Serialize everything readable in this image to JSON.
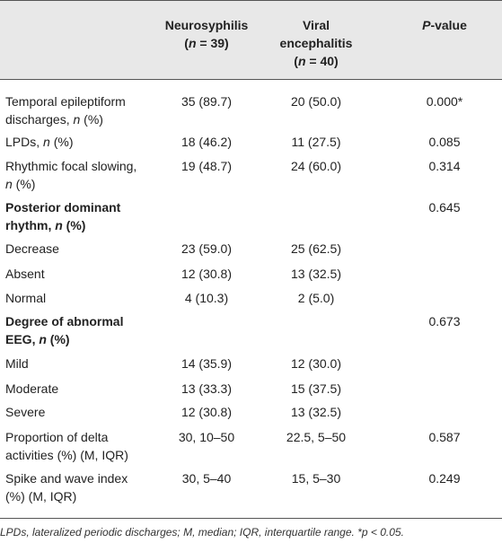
{
  "header": {
    "col1": [
      "Neurosyphilis",
      "(",
      "n",
      " = 39)"
    ],
    "col2": [
      "Viral",
      "encephalitis",
      "(",
      "n",
      " = 40)"
    ],
    "col3": [
      "P",
      "-value"
    ]
  },
  "rows": [
    {
      "label": [
        "Temporal epileptiform",
        "discharges, ",
        "n",
        " (%)"
      ],
      "v1": "35 (89.7)",
      "v2": "20 (50.0)",
      "p": "0.000*"
    },
    {
      "label": [
        "LPDs, ",
        "n",
        " (%)"
      ],
      "v1": "18 (46.2)",
      "v2": "11 (27.5)",
      "p": "0.085"
    },
    {
      "label": [
        "Rhythmic focal slowing,",
        "n",
        " (%)"
      ],
      "v1": "19 (48.7)",
      "v2": "24 (60.0)",
      "p": "0.314"
    },
    {
      "label": [
        "Posterior dominant",
        "rhythm, ",
        "n",
        " (%)"
      ],
      "v1": "",
      "v2": "",
      "p": "0.645"
    },
    {
      "label": [
        "Decrease"
      ],
      "v1": "23 (59.0)",
      "v2": "25 (62.5)",
      "p": ""
    },
    {
      "label": [
        "Absent"
      ],
      "v1": "12 (30.8)",
      "v2": "13 (32.5)",
      "p": ""
    },
    {
      "label": [
        "Normal"
      ],
      "v1": "4 (10.3)",
      "v2": "2 (5.0)",
      "p": ""
    },
    {
      "label": [
        "Degree of abnormal",
        "EEG, ",
        "n",
        " (%)"
      ],
      "v1": "",
      "v2": "",
      "p": "0.673"
    },
    {
      "label": [
        "Mild"
      ],
      "v1": "14 (35.9)",
      "v2": "12 (30.0)",
      "p": ""
    },
    {
      "label": [
        "Moderate"
      ],
      "v1": "13 (33.3)",
      "v2": "15 (37.5)",
      "p": ""
    },
    {
      "label": [
        "Severe"
      ],
      "v1": "12 (30.8)",
      "v2": "13 (32.5)",
      "p": ""
    },
    {
      "label": [
        "Proportion of delta",
        "activities (%) (M, IQR)"
      ],
      "v1": "30, 10–50",
      "v2": "22.5, 5–50",
      "p": "0.587"
    },
    {
      "label": [
        "Spike and wave index",
        "(%) (M, IQR)"
      ],
      "v1": "30, 5–40",
      "v2": "15, 5–30",
      "p": "0.249"
    }
  ],
  "footnote": [
    "LPDs, lateralized periodic discharges; M, median; IQR, interquartile range. *",
    "p",
    " < 0.05."
  ]
}
